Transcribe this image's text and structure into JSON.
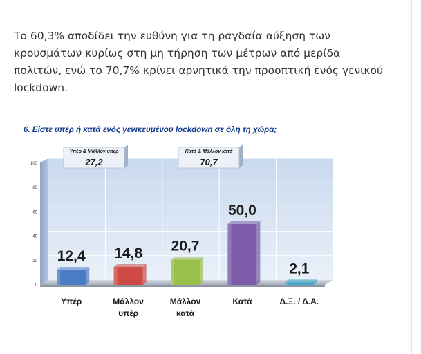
{
  "paragraph": "Το 60,3% αποδίδει την ευθύνη για τη ραγδαία αύξηση των κρουσμάτων κυρίως στη μη τήρηση των μέτρων από μερίδα πολιτών, ενώ το 70,7% κρίνει αρνητικά την προοπτική ενός γενικού lockdown.",
  "chart_data": {
    "type": "bar",
    "title": "6. Είστε υπέρ ή κατά ενός γενικευμένου lockdown σε όλη τη χώρα;",
    "categories": [
      "Υπέρ",
      "Μάλλον υπέρ",
      "Μάλλον κατά",
      "Κατά",
      "Δ.Ξ. / Δ.Α."
    ],
    "category_lines": [
      [
        "Υπέρ"
      ],
      [
        "Μάλλον",
        "υπέρ"
      ],
      [
        "Μάλλον",
        "κατά"
      ],
      [
        "Κατά"
      ],
      [
        "Δ.Ξ. / Δ.Α."
      ]
    ],
    "values": [
      12.4,
      14.8,
      20.7,
      50.0,
      2.1
    ],
    "value_labels": [
      "12,4",
      "14,8",
      "20,7",
      "50,0",
      "2,1"
    ],
    "colors": [
      "#4a7cc6",
      "#cc4a43",
      "#98c04a",
      "#7c5ca8",
      "#3aa7c9"
    ],
    "ylim": [
      0,
      100
    ],
    "yticks": [
      0,
      20,
      40,
      60,
      80,
      100
    ],
    "grid": true,
    "callouts": [
      {
        "label": "Υπέρ & Μάλλον υπέρ",
        "value": "27,2"
      },
      {
        "label": "Κατά & Μάλλον κατά",
        "value": "70,7"
      }
    ]
  }
}
